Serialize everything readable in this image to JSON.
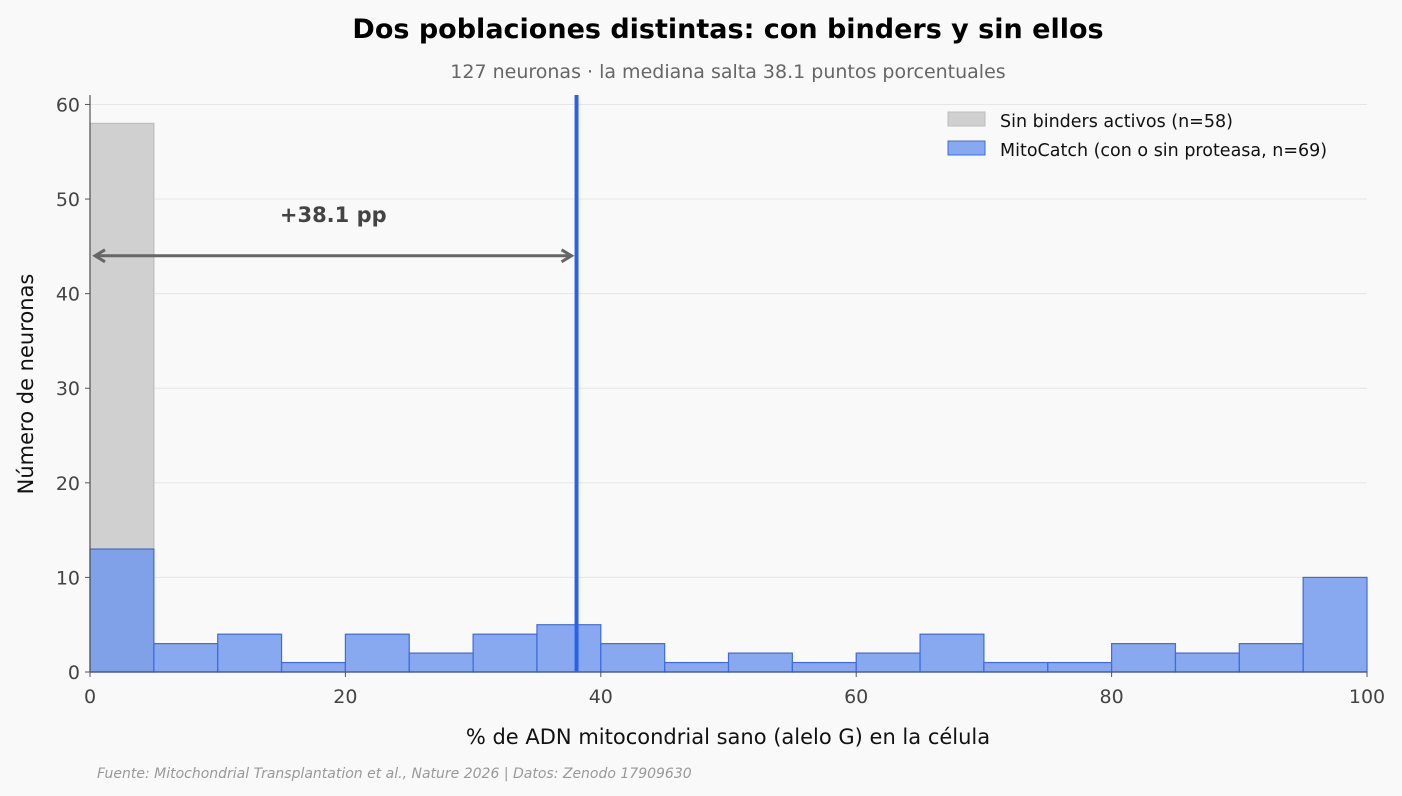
{
  "chart_data": {
    "type": "histogram",
    "title": "Dos poblaciones distintas: con binders y sin ellos",
    "subtitle": "127 neuronas · la mediana salta 38.1 puntos porcentuales",
    "xlabel": "% de ADN mitocondrial sano (alelo G) en la célula",
    "ylabel": "Número de neuronas",
    "xlim": [
      0,
      100
    ],
    "ylim": [
      0,
      61
    ],
    "xticks": [
      0,
      20,
      40,
      60,
      80,
      100
    ],
    "yticks": [
      0,
      10,
      20,
      30,
      40,
      50,
      60
    ],
    "grid": true,
    "legend_position": "top-right",
    "bin_edges": [
      0,
      5,
      10,
      15,
      20,
      25,
      30,
      35,
      40,
      45,
      50,
      55,
      60,
      65,
      70,
      75,
      80,
      85,
      90,
      95,
      100
    ],
    "series": [
      {
        "name": "Sin binders activos (n=58)",
        "color": "#d0d0d0",
        "edge_color": "#bdbdbd",
        "counts": [
          58,
          0,
          0,
          0,
          0,
          0,
          0,
          0,
          0,
          0,
          0,
          0,
          0,
          0,
          0,
          0,
          0,
          0,
          0,
          0
        ]
      },
      {
        "name": "MitoCatch (con o sin proteasa, n=69)",
        "color": "#6b95ee",
        "edge_color": "#3d6be0",
        "counts": [
          13,
          3,
          4,
          1,
          4,
          2,
          4,
          5,
          3,
          1,
          2,
          1,
          2,
          4,
          1,
          1,
          3,
          2,
          3,
          10
        ]
      }
    ],
    "median_line": {
      "x": 38.1,
      "color": "#2962e8"
    },
    "annotation": {
      "text": "+38.1 pp",
      "arrow_from": 0,
      "arrow_to": 38.1,
      "arrow_y": 44
    },
    "source": "Fuente: Mitochondrial Transplantation et al., Nature 2026 | Datos: Zenodo 17909630"
  }
}
